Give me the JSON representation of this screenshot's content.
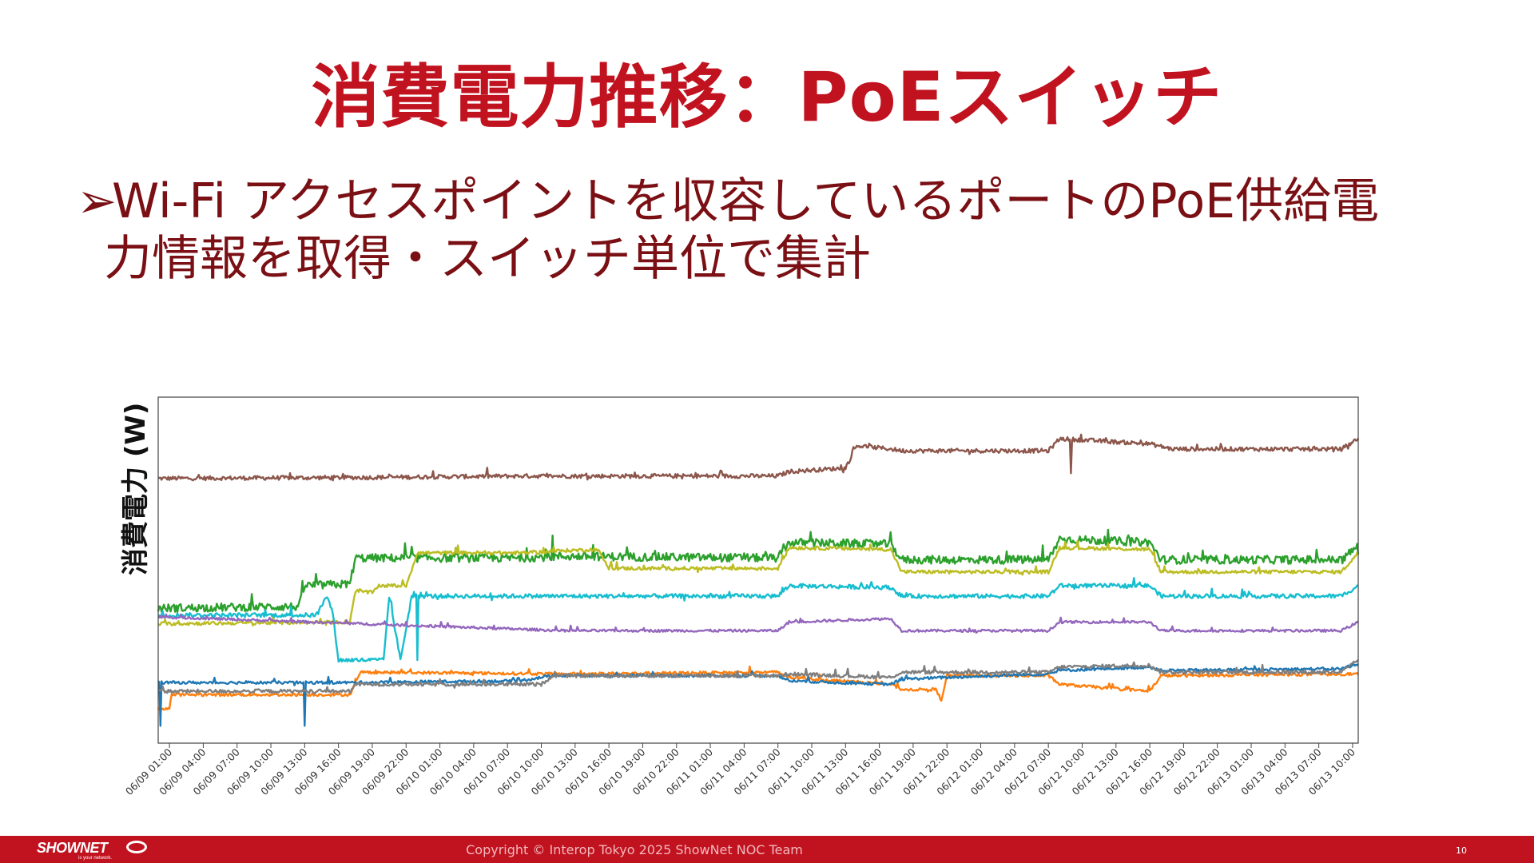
{
  "slide": {
    "title": "消費電力推移：PoEスイッチ",
    "bullet_marker": "➢",
    "bullet_line1": "Wi-Fi アクセスポイントを収容しているポートのPoE供給電",
    "bullet_line2": "力情報を取得・スイッチ単位で集計"
  },
  "footer": {
    "logo_text": "SHOWNET",
    "logo_tagline": "is your network.",
    "copyright": "Copyright © Interop Tokyo 2025 ShowNet NOC Team",
    "page_number": "10",
    "bar_color": "#c1121f"
  },
  "chart_data": {
    "type": "line",
    "title": "",
    "xlabel": "",
    "ylabel": "消費電力 (W)",
    "y_tick_labels_shown": false,
    "grid": false,
    "legend": "none",
    "x_tick_labels": [
      "06/09 01:00",
      "06/09 04:00",
      "06/09 07:00",
      "06/09 10:00",
      "06/09 13:00",
      "06/09 16:00",
      "06/09 19:00",
      "06/09 22:00",
      "06/10 01:00",
      "06/10 04:00",
      "06/10 07:00",
      "06/10 10:00",
      "06/10 13:00",
      "06/10 16:00",
      "06/10 19:00",
      "06/10 22:00",
      "06/11 01:00",
      "06/11 04:00",
      "06/11 07:00",
      "06/11 10:00",
      "06/11 13:00",
      "06/11 16:00",
      "06/11 19:00",
      "06/11 22:00",
      "06/12 01:00",
      "06/12 04:00",
      "06/12 07:00",
      "06/12 10:00",
      "06/12 13:00",
      "06/12 16:00",
      "06/12 19:00",
      "06/12 22:00",
      "06/13 01:00",
      "06/13 04:00",
      "06/13 07:00",
      "06/13 10:00"
    ],
    "x_range": [
      "06/09 00:00",
      "06/13 10:30"
    ],
    "y_range_relative": [
      0,
      100
    ],
    "series": [
      {
        "color": "#8c564b",
        "noise": 0.6,
        "points": [
          [
            "06/09 00:00",
            76.5
          ],
          [
            "06/09 19:00",
            76.8
          ],
          [
            "06/10 08:00",
            77.2
          ],
          [
            "06/11 07:00",
            77.2
          ],
          [
            "06/11 08:00",
            78.5
          ],
          [
            "06/11 13:00",
            79.5
          ],
          [
            "06/11 14:00",
            86
          ],
          [
            "06/11 17:00",
            85
          ],
          [
            "06/11 18:00",
            84.5
          ],
          [
            "06/12 07:00",
            84.5
          ],
          [
            "06/12 08:00",
            88
          ],
          [
            "06/12 16:00",
            86.5
          ],
          [
            "06/12 18:00",
            85
          ],
          [
            "06/13 09:00",
            85
          ],
          [
            "06/13 10:30",
            88
          ]
        ],
        "spikes": [
          [
            "06/12 09:00",
            78
          ]
        ]
      },
      {
        "color": "#2ca02c",
        "noise": 1.2,
        "points": [
          [
            "06/09 00:00",
            39
          ],
          [
            "06/09 12:30",
            39.5
          ],
          [
            "06/09 13:00",
            45.5
          ],
          [
            "06/09 17:00",
            46
          ],
          [
            "06/09 17:30",
            53.5
          ],
          [
            "06/10 08:00",
            53.5
          ],
          [
            "06/10 12:00",
            54
          ],
          [
            "06/11 07:00",
            53.5
          ],
          [
            "06/11 08:00",
            58
          ],
          [
            "06/11 17:00",
            57.5
          ],
          [
            "06/11 18:00",
            53
          ],
          [
            "06/12 07:00",
            53
          ],
          [
            "06/12 08:00",
            59
          ],
          [
            "06/12 16:00",
            58
          ],
          [
            "06/12 17:00",
            53
          ],
          [
            "06/13 09:00",
            53
          ],
          [
            "06/13 10:30",
            57
          ]
        ],
        "spikes": [
          [
            "06/10 11:00",
            60
          ],
          [
            "06/11 17:00",
            61
          ]
        ]
      },
      {
        "color": "#bcbd22",
        "noise": 0.5,
        "points": [
          [
            "06/09 00:00",
            34.5
          ],
          [
            "06/09 17:00",
            35
          ],
          [
            "06/09 17:30",
            44
          ],
          [
            "06/09 19:00",
            43.5
          ],
          [
            "06/09 19:30",
            45.5
          ],
          [
            "06/09 22:00",
            45.5
          ],
          [
            "06/09 23:00",
            55
          ],
          [
            "06/10 09:00",
            55
          ],
          [
            "06/10 11:00",
            55.5
          ],
          [
            "06/10 15:00",
            56
          ],
          [
            "06/10 16:00",
            50.5
          ],
          [
            "06/11 07:00",
            50.5
          ],
          [
            "06/11 08:00",
            56.5
          ],
          [
            "06/11 17:00",
            56
          ],
          [
            "06/11 18:00",
            49.5
          ],
          [
            "06/12 07:00",
            49.5
          ],
          [
            "06/12 08:00",
            56.5
          ],
          [
            "06/12 16:00",
            56
          ],
          [
            "06/12 17:00",
            49.5
          ],
          [
            "06/13 09:00",
            49.5
          ],
          [
            "06/13 10:30",
            55
          ]
        ],
        "spikes": []
      },
      {
        "color": "#17becf",
        "noise": 0.6,
        "points": [
          [
            "06/09 00:00",
            37
          ],
          [
            "06/09 14:00",
            37
          ],
          [
            "06/09 15:00",
            42.5
          ],
          [
            "06/09 15:30",
            37.5
          ],
          [
            "06/09 16:00",
            24
          ],
          [
            "06/09 20:00",
            24
          ],
          [
            "06/09 20:30",
            42.5
          ],
          [
            "06/09 21:30",
            24
          ],
          [
            "06/09 22:30",
            42.5
          ],
          [
            "06/10 08:00",
            42.5
          ],
          [
            "06/11 07:00",
            42.5
          ],
          [
            "06/11 08:00",
            45.5
          ],
          [
            "06/11 17:00",
            45
          ],
          [
            "06/11 18:00",
            42.5
          ],
          [
            "06/12 07:00",
            42.5
          ],
          [
            "06/12 08:00",
            45.5
          ],
          [
            "06/12 16:00",
            45.5
          ],
          [
            "06/12 17:00",
            42.5
          ],
          [
            "06/13 09:00",
            42.5
          ],
          [
            "06/13 10:30",
            45.5
          ]
        ],
        "spikes": [
          [
            "06/09 23:00",
            24
          ]
        ]
      },
      {
        "color": "#9467bd",
        "noise": 0.35,
        "points": [
          [
            "06/09 00:00",
            36.5
          ],
          [
            "06/10 12:00",
            32.5
          ],
          [
            "06/11 07:00",
            32.5
          ],
          [
            "06/11 08:00",
            35
          ],
          [
            "06/11 17:00",
            36
          ],
          [
            "06/11 18:00",
            32.5
          ],
          [
            "06/12 07:00",
            32.5
          ],
          [
            "06/12 08:00",
            35
          ],
          [
            "06/12 16:00",
            35
          ],
          [
            "06/12 17:00",
            32.5
          ],
          [
            "06/13 09:00",
            32.5
          ],
          [
            "06/13 10:30",
            35
          ]
        ],
        "spikes": []
      },
      {
        "color": "#ff7f0e",
        "noise": 0.4,
        "points": [
          [
            "06/09 00:00",
            10
          ],
          [
            "06/09 01:00",
            10
          ],
          [
            "06/09 01:10",
            14
          ],
          [
            "06/09 17:00",
            14
          ],
          [
            "06/09 18:00",
            20.5
          ],
          [
            "06/10 12:00",
            20
          ],
          [
            "06/11 07:00",
            20.5
          ],
          [
            "06/11 08:00",
            19
          ],
          [
            "06/11 17:00",
            17
          ],
          [
            "06/11 18:00",
            15.5
          ],
          [
            "06/11 21:00",
            15.5
          ],
          [
            "06/11 21:30",
            12.5
          ],
          [
            "06/11 22:00",
            19.5
          ],
          [
            "06/12 07:00",
            19.5
          ],
          [
            "06/12 08:00",
            17
          ],
          [
            "06/12 16:00",
            15
          ],
          [
            "06/12 17:00",
            19.5
          ],
          [
            "06/13 10:30",
            20
          ]
        ],
        "spikes": []
      },
      {
        "color": "#1f77b4",
        "noise": 0.4,
        "points": [
          [
            "06/09 00:00",
            17.5
          ],
          [
            "06/09 17:00",
            17.5
          ],
          [
            "06/10 08:00",
            18
          ],
          [
            "06/10 11:00",
            19.5
          ],
          [
            "06/11 07:00",
            19.5
          ],
          [
            "06/11 08:00",
            18
          ],
          [
            "06/11 17:00",
            17
          ],
          [
            "06/11 18:00",
            18.5
          ],
          [
            "06/11 22:00",
            19
          ],
          [
            "06/12 07:00",
            20
          ],
          [
            "06/12 08:00",
            21
          ],
          [
            "06/12 16:00",
            22
          ],
          [
            "06/12 17:00",
            21
          ],
          [
            "06/13 09:00",
            21.5
          ],
          [
            "06/13 10:30",
            23
          ]
        ],
        "spikes": [
          [
            "06/09 00:10",
            5
          ],
          [
            "06/09 13:00",
            5
          ]
        ]
      },
      {
        "color": "#7f7f7f",
        "noise": 0.5,
        "points": [
          [
            "06/09 00:00",
            15
          ],
          [
            "06/09 17:00",
            15
          ],
          [
            "06/09 17:30",
            17
          ],
          [
            "06/10 10:00",
            17
          ],
          [
            "06/10 11:00",
            19.5
          ],
          [
            "06/11 07:00",
            19.5
          ],
          [
            "06/11 08:00",
            20
          ],
          [
            "06/11 17:00",
            19
          ],
          [
            "06/11 18:00",
            20.5
          ],
          [
            "06/12 07:00",
            20.5
          ],
          [
            "06/12 08:00",
            22
          ],
          [
            "06/12 16:00",
            22.5
          ],
          [
            "06/12 17:00",
            20.5
          ],
          [
            "06/13 09:00",
            20.5
          ],
          [
            "06/13 10:30",
            24
          ]
        ],
        "spikes": []
      }
    ]
  }
}
